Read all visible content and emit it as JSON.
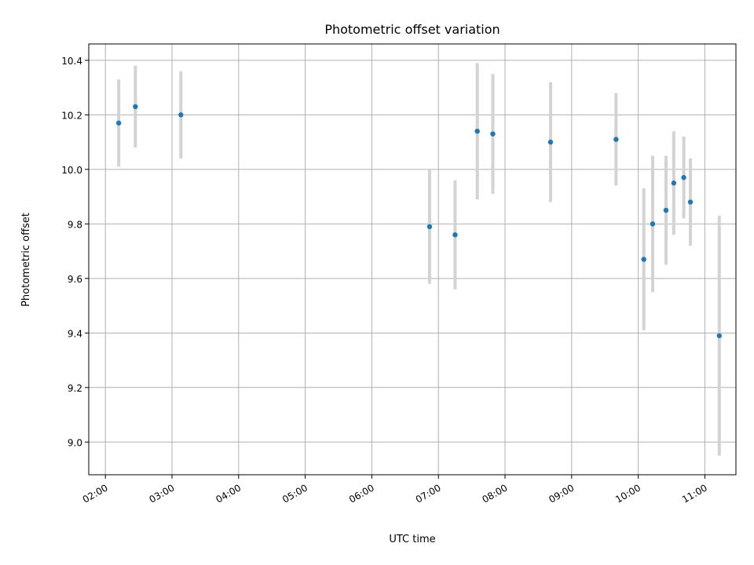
{
  "chart_data": {
    "type": "scatter",
    "title": "Photometric offset variation",
    "xlabel": "UTC time",
    "ylabel": "Photometric offset",
    "xlim": [
      "01:45",
      "11:28"
    ],
    "ylim": [
      8.88,
      10.46
    ],
    "x_ticks": [
      "02:00",
      "03:00",
      "04:00",
      "05:00",
      "06:00",
      "07:00",
      "08:00",
      "09:00",
      "10:00",
      "11:00"
    ],
    "y_ticks": [
      "9.0",
      "9.2",
      "9.4",
      "9.6",
      "9.8",
      "10.0",
      "10.2",
      "10.4"
    ],
    "grid": true,
    "marker_color": "#1f77b4",
    "errorbar_color": "#d3d3d3",
    "points": [
      {
        "x": "02:12",
        "y": 10.17,
        "yerr": 0.16
      },
      {
        "x": "02:27",
        "y": 10.23,
        "yerr": 0.15
      },
      {
        "x": "03:08",
        "y": 10.2,
        "yerr": 0.16
      },
      {
        "x": "06:52",
        "y": 9.79,
        "yerr": 0.21
      },
      {
        "x": "07:15",
        "y": 9.76,
        "yerr": 0.2
      },
      {
        "x": "07:35",
        "y": 10.14,
        "yerr": 0.25
      },
      {
        "x": "07:49",
        "y": 10.13,
        "yerr": 0.22
      },
      {
        "x": "08:41",
        "y": 10.1,
        "yerr": 0.22
      },
      {
        "x": "09:40",
        "y": 10.11,
        "yerr": 0.17
      },
      {
        "x": "10:05",
        "y": 9.67,
        "yerr": 0.26
      },
      {
        "x": "10:13",
        "y": 9.8,
        "yerr": 0.25
      },
      {
        "x": "10:25",
        "y": 9.85,
        "yerr": 0.2
      },
      {
        "x": "10:32",
        "y": 9.95,
        "yerr": 0.19
      },
      {
        "x": "10:41",
        "y": 9.97,
        "yerr": 0.15
      },
      {
        "x": "10:47",
        "y": 9.88,
        "yerr": 0.16
      },
      {
        "x": "11:13",
        "y": 9.39,
        "yerr": 0.44
      }
    ]
  }
}
